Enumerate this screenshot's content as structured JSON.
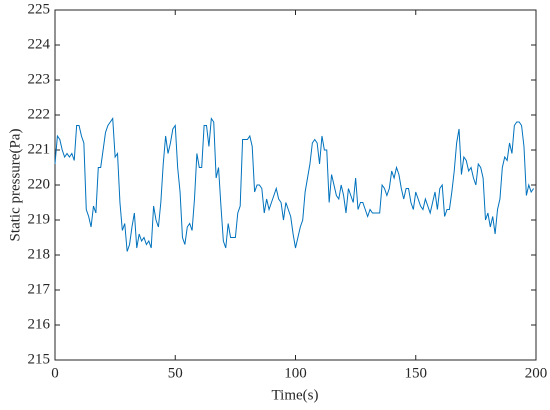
{
  "chart_data": {
    "type": "line",
    "xlabel": "Time(s)",
    "ylabel": "Static pressure(Pa)",
    "color": "#0072bd",
    "xlim": [
      0,
      200
    ],
    "xticks": [
      0,
      50,
      100,
      150,
      200
    ],
    "ylim": [
      215,
      225
    ],
    "yticks": [
      215,
      216,
      217,
      218,
      219,
      220,
      221,
      222,
      223,
      224,
      225
    ],
    "x": [
      0,
      1,
      2,
      3,
      4,
      5,
      6,
      7,
      8,
      9,
      10,
      11,
      12,
      13,
      14,
      15,
      16,
      17,
      18,
      19,
      20,
      21,
      22,
      23,
      24,
      25,
      26,
      27,
      28,
      29,
      30,
      31,
      32,
      33,
      34,
      35,
      36,
      37,
      38,
      39,
      40,
      41,
      42,
      43,
      44,
      45,
      46,
      47,
      48,
      49,
      50,
      51,
      52,
      53,
      54,
      55,
      56,
      57,
      58,
      59,
      60,
      61,
      62,
      63,
      64,
      65,
      66,
      67,
      68,
      69,
      70,
      71,
      72,
      73,
      74,
      75,
      76,
      77,
      78,
      79,
      80,
      81,
      82,
      83,
      84,
      85,
      86,
      87,
      88,
      89,
      90,
      91,
      92,
      93,
      94,
      95,
      96,
      97,
      98,
      99,
      100,
      101,
      102,
      103,
      104,
      105,
      106,
      107,
      108,
      109,
      110,
      111,
      112,
      113,
      114,
      115,
      116,
      117,
      118,
      119,
      120,
      121,
      122,
      123,
      124,
      125,
      126,
      127,
      128,
      129,
      130,
      131,
      132,
      133,
      134,
      135,
      136,
      137,
      138,
      139,
      140,
      141,
      142,
      143,
      144,
      145,
      146,
      147,
      148,
      149,
      150,
      151,
      152,
      153,
      154,
      155,
      156,
      157,
      158,
      159,
      160,
      161,
      162,
      163,
      164,
      165,
      166,
      167,
      168,
      169,
      170,
      171,
      172,
      173,
      174,
      175,
      176,
      177,
      178,
      179,
      180,
      181,
      182,
      183,
      184,
      185,
      186,
      187,
      188,
      189,
      190,
      191,
      192,
      193,
      194,
      195,
      196,
      197,
      198,
      199
    ],
    "values": [
      220.6,
      221.4,
      221.3,
      221.0,
      220.8,
      220.9,
      220.8,
      220.9,
      220.7,
      221.7,
      221.7,
      221.4,
      221.2,
      219.3,
      219.1,
      218.8,
      219.4,
      219.2,
      220.5,
      220.5,
      221.0,
      221.5,
      221.7,
      221.8,
      221.9,
      220.8,
      220.9,
      219.5,
      218.7,
      218.9,
      218.1,
      218.3,
      218.8,
      219.2,
      218.2,
      218.6,
      218.4,
      218.5,
      218.3,
      218.4,
      218.2,
      219.4,
      219.0,
      218.8,
      219.5,
      220.6,
      221.4,
      220.9,
      221.2,
      221.6,
      221.7,
      220.5,
      219.8,
      218.5,
      218.3,
      218.8,
      218.9,
      218.7,
      219.6,
      220.9,
      220.5,
      220.5,
      221.7,
      221.7,
      221.1,
      221.9,
      221.8,
      220.2,
      220.5,
      219.4,
      218.4,
      218.2,
      218.9,
      218.5,
      218.5,
      218.5,
      219.2,
      219.4,
      221.3,
      221.3,
      221.3,
      221.4,
      221.1,
      219.8,
      220.0,
      220.0,
      219.9,
      219.2,
      219.6,
      219.3,
      219.5,
      219.7,
      219.9,
      219.6,
      219.5,
      219.0,
      219.5,
      219.3,
      219.1,
      218.6,
      218.2,
      218.5,
      218.8,
      219.0,
      219.8,
      220.2,
      220.6,
      221.2,
      221.3,
      221.2,
      220.6,
      221.4,
      221.0,
      221.0,
      219.5,
      220.3,
      220.0,
      219.7,
      219.6,
      220.0,
      219.7,
      219.2,
      219.9,
      219.7,
      219.5,
      220.2,
      219.3,
      219.5,
      219.5,
      219.3,
      219.1,
      219.3,
      219.2,
      219.2,
      219.2,
      219.2,
      220.0,
      219.9,
      219.7,
      219.9,
      220.4,
      220.2,
      220.5,
      220.3,
      219.9,
      219.6,
      219.9,
      219.9,
      219.5,
      219.3,
      219.8,
      219.6,
      219.4,
      219.3,
      219.6,
      219.4,
      219.2,
      219.5,
      219.8,
      219.3,
      219.9,
      220.0,
      219.1,
      219.3,
      219.3,
      219.8,
      220.4,
      221.2,
      221.6,
      220.3,
      220.8,
      220.7,
      220.4,
      220.5,
      220.2,
      220.0,
      220.6,
      220.5,
      220.2,
      219.0,
      219.2,
      218.8,
      219.1,
      218.6,
      219.3,
      219.6,
      220.5,
      220.8,
      220.7,
      221.2,
      220.9,
      221.7,
      221.8,
      221.8,
      221.7,
      221.1,
      219.7,
      220.0,
      219.8,
      219.9
    ]
  }
}
